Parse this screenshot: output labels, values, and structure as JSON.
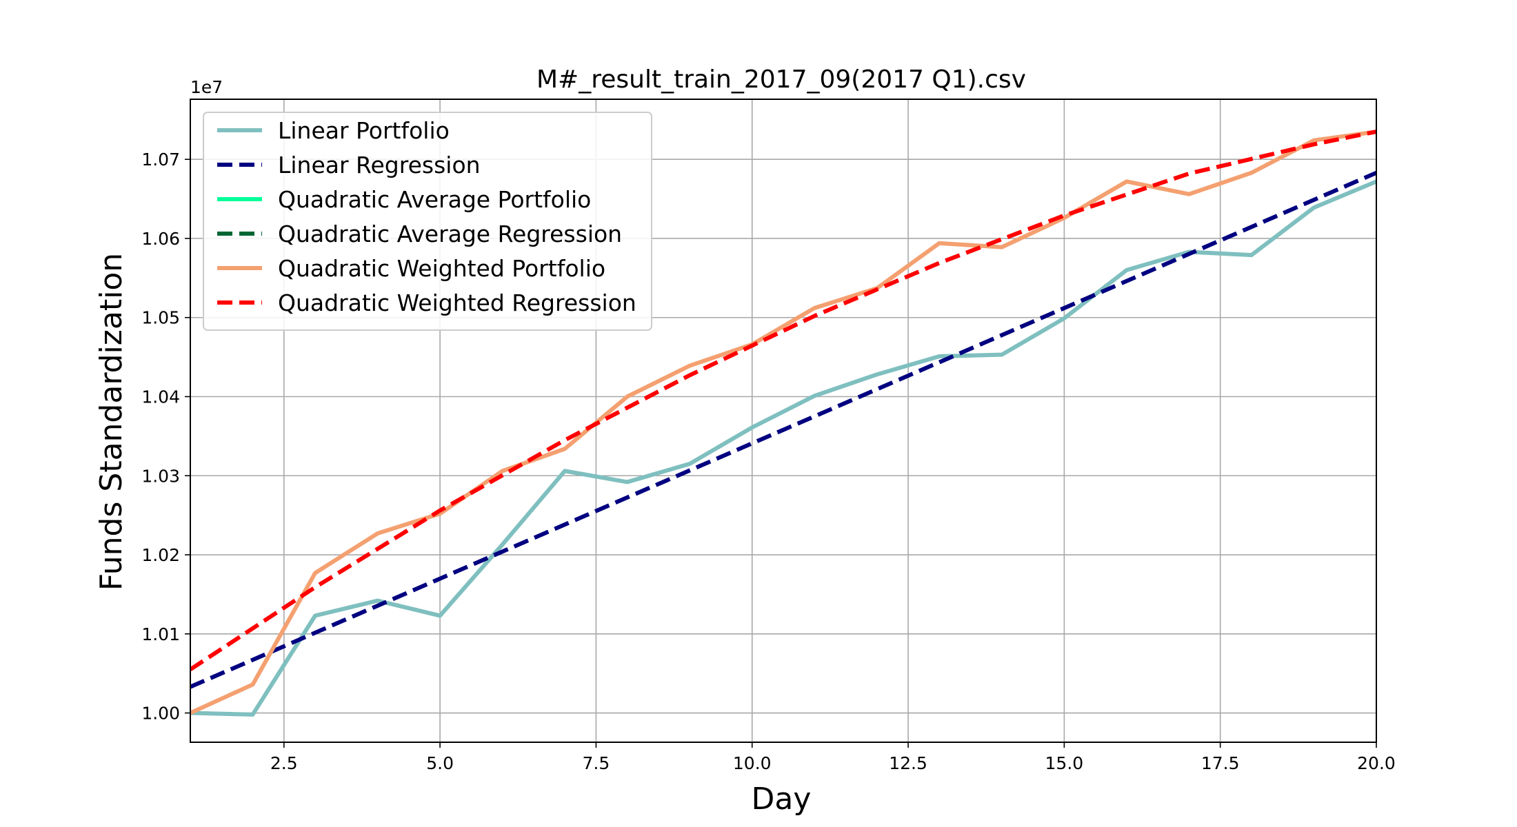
{
  "chart_data": {
    "type": "line",
    "title": "M#_result_train_2017_09(2017 Q1).csv",
    "xlabel": "Day",
    "ylabel": "Funds Standardization",
    "y_offset_label": "1e7",
    "xlim": [
      1,
      20
    ],
    "ylim": [
      0.9963,
      1.0776
    ],
    "x_ticks": [
      2.5,
      5.0,
      7.5,
      10.0,
      12.5,
      15.0,
      17.5,
      20.0
    ],
    "x_tick_labels": [
      "2.5",
      "5.0",
      "7.5",
      "10.0",
      "12.5",
      "15.0",
      "17.5",
      "20.0"
    ],
    "y_ticks": [
      1.0,
      1.01,
      1.02,
      1.03,
      1.04,
      1.05,
      1.06,
      1.07
    ],
    "y_tick_labels": [
      "1.00",
      "1.01",
      "1.02",
      "1.03",
      "1.04",
      "1.05",
      "1.06",
      "1.07"
    ],
    "grid": true,
    "legend_position": "top-left",
    "series": [
      {
        "name": "Linear Portfolio",
        "color": "#7fbfbf",
        "style": "solid",
        "x": [
          1,
          2,
          3,
          4,
          5,
          6,
          7,
          8,
          9,
          10,
          11,
          12,
          13,
          14,
          15,
          16,
          17,
          18,
          19,
          20
        ],
        "y": [
          1.0,
          0.9998,
          1.0123,
          1.0142,
          1.0123,
          1.0213,
          1.0306,
          1.0292,
          1.0315,
          1.0361,
          1.0401,
          1.0428,
          1.0451,
          1.0453,
          1.0499,
          1.056,
          1.0583,
          1.0579,
          1.0639,
          1.0672
        ]
      },
      {
        "name": "Linear Regression",
        "color": "#000080",
        "style": "dashed",
        "x": [
          1,
          20
        ],
        "y": [
          1.0033,
          1.0683
        ]
      },
      {
        "name": "Quadratic Average Portfolio",
        "color": "#00ff99",
        "style": "solid",
        "x": [],
        "y": []
      },
      {
        "name": "Quadratic Average Regression",
        "color": "#006633",
        "style": "dashed",
        "x": [],
        "y": []
      },
      {
        "name": "Quadratic Weighted Portfolio",
        "color": "#f4a070",
        "style": "solid",
        "x": [
          1,
          2,
          3,
          4,
          5,
          6,
          7,
          8,
          9,
          10,
          11,
          12,
          13,
          14,
          15,
          16,
          17,
          18,
          19,
          20
        ],
        "y": [
          1.0,
          1.0036,
          1.0177,
          1.0227,
          1.0252,
          1.0306,
          1.0334,
          1.04,
          1.0439,
          1.0466,
          1.0512,
          1.0537,
          1.0594,
          1.0589,
          1.0626,
          1.0672,
          1.0656,
          1.0683,
          1.0724,
          1.0735
        ]
      },
      {
        "name": "Quadratic Weighted Regression",
        "color": "#ff0000",
        "style": "dashed",
        "x": [
          1,
          3,
          5,
          7,
          9,
          11,
          13,
          15,
          17,
          19,
          20
        ],
        "y": [
          1.0055,
          1.0159,
          1.0256,
          1.0345,
          1.0427,
          1.0502,
          1.0569,
          1.0629,
          1.0682,
          1.0719,
          1.0735
        ]
      }
    ]
  }
}
